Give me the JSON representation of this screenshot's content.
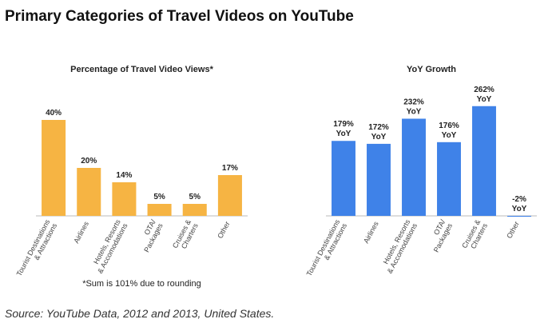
{
  "title": "Primary Categories of Travel Videos on YouTube",
  "source": "Source: YouTube Data, 2012 and 2013, United States.",
  "chart_data": [
    {
      "type": "bar",
      "title": "Percentage of Travel Video Views*",
      "note": "*Sum is 101% due to rounding",
      "categories": [
        [
          "Tourist Destinations",
          "& Attractions"
        ],
        [
          "Airlines"
        ],
        [
          "Hotels, Resorts",
          "& Accomodations"
        ],
        [
          "OTA/",
          "Packages"
        ],
        [
          "Cruises &",
          "Charters"
        ],
        [
          "Other"
        ]
      ],
      "values": [
        40,
        20,
        14,
        5,
        5,
        17
      ],
      "value_labels": [
        [
          "40%"
        ],
        [
          "20%"
        ],
        [
          "14%"
        ],
        [
          "5%"
        ],
        [
          "5%"
        ],
        [
          "17%"
        ]
      ],
      "color": "#f6b443",
      "ylim": [
        0,
        55
      ]
    },
    {
      "type": "bar",
      "title": "YoY Growth",
      "categories": [
        [
          "Tourist Destinations",
          "& Attractions"
        ],
        [
          "Airlines"
        ],
        [
          "Hotels, Resorts",
          "& Accomodations"
        ],
        [
          "OTA/",
          "Packages"
        ],
        [
          "Cruises &",
          "Charters"
        ],
        [
          "Other"
        ]
      ],
      "values": [
        179,
        172,
        232,
        176,
        262,
        -2
      ],
      "value_labels": [
        [
          "179%",
          "YoY"
        ],
        [
          "172%",
          "YoY"
        ],
        [
          "232%",
          "YoY"
        ],
        [
          "176%",
          "YoY"
        ],
        [
          "262%",
          "YoY"
        ],
        [
          "-2%",
          "YoY"
        ]
      ],
      "color": "#3f82e8",
      "ylim": [
        0,
        315
      ]
    }
  ]
}
